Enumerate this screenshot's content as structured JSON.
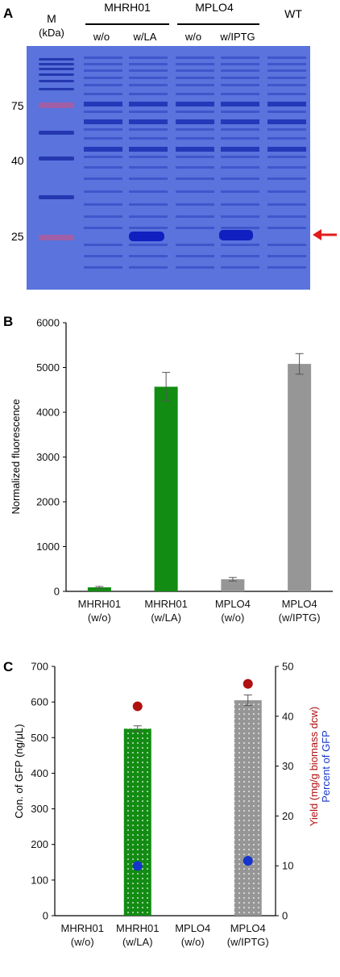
{
  "panel_a": {
    "panel_label": "A",
    "marker_label": "M",
    "marker_unit": "(kDa)",
    "group1_name": "MHRH01",
    "group2_name": "MPLO4",
    "wt_label": "WT",
    "lane_labels": [
      "w/o",
      "w/LA",
      "w/o",
      "w/IPTG"
    ],
    "mw_labels": [
      "75",
      "40",
      "25"
    ],
    "gel_color": "#5a73dd",
    "band_color": "#1020c0",
    "marker_band_color": "#b25a9a",
    "arrow_color": "#e31b1b"
  },
  "chart_data": [
    {
      "type": "bar",
      "panel_label": "B",
      "categories": [
        [
          "MHRH01",
          "(w/o)"
        ],
        [
          "MHRH01",
          "(w/LA)"
        ],
        [
          "MPLO4",
          "(w/o)"
        ],
        [
          "MPLO4",
          "(w/IPTG)"
        ]
      ],
      "values": [
        90,
        4570,
        270,
        5080
      ],
      "errors": [
        20,
        320,
        40,
        230
      ],
      "colors": [
        "#128c12",
        "#128c12",
        "#969696",
        "#969696"
      ],
      "ylabel": "Normalized fluorescence",
      "ylim": [
        0,
        6000
      ],
      "yticks": [
        0,
        1000,
        2000,
        3000,
        4000,
        5000,
        6000
      ],
      "grid": false
    },
    {
      "type": "bar",
      "panel_label": "C",
      "categories": [
        [
          "MHRH01",
          "(w/o)"
        ],
        [
          "MHRH01",
          "(w/LA)"
        ],
        [
          "MPLO4",
          "(w/o)"
        ],
        [
          "MPLO4",
          "(w/IPTG)"
        ]
      ],
      "values": [
        0,
        525,
        0,
        605
      ],
      "errors": [
        0,
        8,
        0,
        15
      ],
      "colors": [
        "#128c12",
        "#128c12",
        "#969696",
        "#969696"
      ],
      "ylabel": "Con. of GFP (ng/μL)",
      "ylim": [
        0,
        700
      ],
      "yticks": [
        0,
        100,
        200,
        300,
        400,
        500,
        600,
        700
      ],
      "y2label_line1": "Yield (mg/g biomass dcw)",
      "y2label_line2": "Percent of GFP",
      "y2lim": [
        0,
        50
      ],
      "y2ticks": [
        0,
        10,
        20,
        30,
        40,
        50
      ],
      "secondary_series": [
        {
          "values": [
            null,
            42,
            null,
            46.5
          ],
          "color": "#b01010"
        },
        {
          "values": [
            null,
            10,
            null,
            11
          ],
          "color": "#1535cc"
        }
      ],
      "grid": false
    }
  ]
}
